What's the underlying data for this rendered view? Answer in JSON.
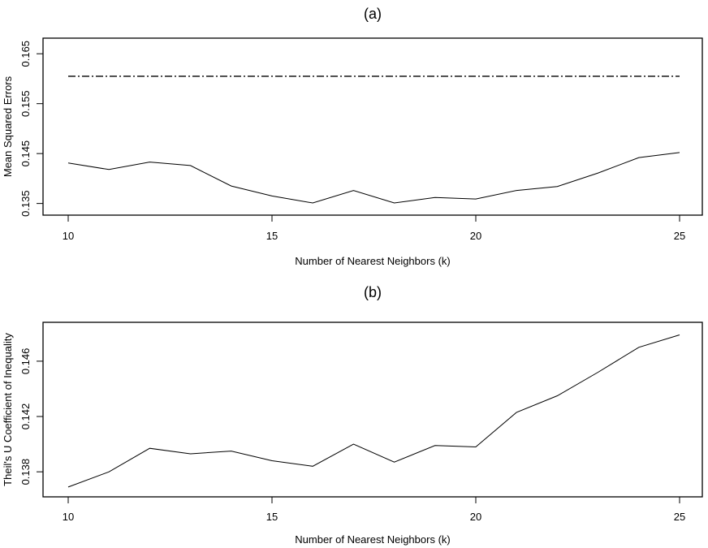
{
  "chart_data": [
    {
      "type": "line",
      "title": "(a)",
      "xlabel": "Number of Nearest Neighbors (k)",
      "ylabel": "Mean Squared Errors",
      "xlim": [
        10,
        25
      ],
      "ylim": [
        0.1338,
        0.1665
      ],
      "x_ticks": [
        10,
        15,
        20,
        25
      ],
      "y_ticks": [
        0.135,
        0.145,
        0.155,
        0.165
      ],
      "x_tick_labels": [
        "10",
        "15",
        "20",
        "25"
      ],
      "y_tick_labels": [
        "0.135",
        "0.145",
        "0.155",
        "0.165"
      ],
      "grid": false,
      "series": [
        {
          "style": "solid",
          "x": [
            10,
            11,
            12,
            13,
            14,
            15,
            16,
            17,
            18,
            19,
            20,
            21,
            22,
            23,
            24,
            25
          ],
          "values": [
            0.1431,
            0.1418,
            0.1433,
            0.1426,
            0.1385,
            0.1365,
            0.1351,
            0.1376,
            0.1351,
            0.1362,
            0.1359,
            0.1376,
            0.1384,
            0.1411,
            0.1442,
            0.1452
          ]
        },
        {
          "style": "dash-dot",
          "x": [
            10,
            11,
            12,
            13,
            14,
            15,
            16,
            17,
            18,
            19,
            20,
            21,
            22,
            23,
            24,
            25
          ],
          "values": [
            0.1605,
            0.1605,
            0.1605,
            0.1605,
            0.1605,
            0.1605,
            0.1605,
            0.1605,
            0.1605,
            0.1605,
            0.1605,
            0.1605,
            0.1605,
            0.1605,
            0.1605,
            0.1605
          ]
        }
      ]
    },
    {
      "type": "line",
      "title": "(b)",
      "xlabel": "Number of Nearest Neighbors (k)",
      "ylabel": "Theil's U Coefficient of Inequality",
      "xlim": [
        10,
        25
      ],
      "ylim": [
        0.1366,
        0.1484
      ],
      "x_ticks": [
        10,
        15,
        20,
        25
      ],
      "y_ticks": [
        0.138,
        0.142,
        0.146
      ],
      "x_tick_labels": [
        "10",
        "15",
        "20",
        "25"
      ],
      "y_tick_labels": [
        "0.138",
        "0.142",
        "0.146"
      ],
      "grid": false,
      "series": [
        {
          "style": "solid",
          "x": [
            10,
            11,
            12,
            13,
            14,
            15,
            16,
            17,
            18,
            19,
            20,
            21,
            22,
            23,
            24,
            25
          ],
          "values": [
            0.1369,
            0.138,
            0.1397,
            0.1393,
            0.1395,
            0.1388,
            0.1384,
            0.14,
            0.1387,
            0.1399,
            0.1398,
            0.1423,
            0.1435,
            0.1452,
            0.147,
            0.1479
          ]
        }
      ]
    }
  ]
}
